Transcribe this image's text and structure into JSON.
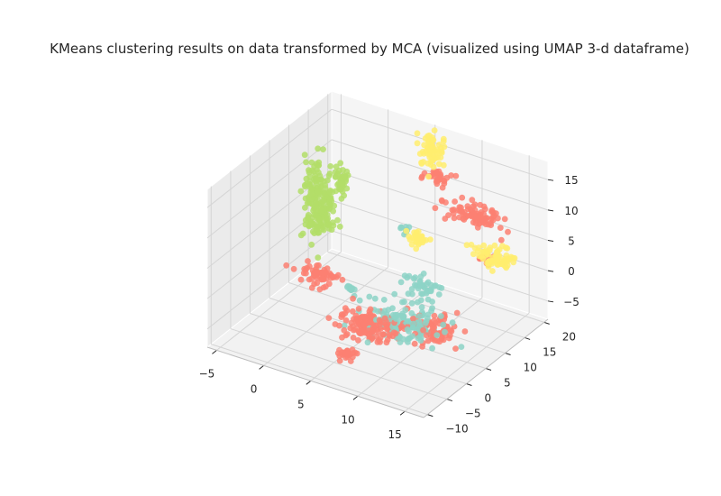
{
  "chart_data": {
    "type": "scatter",
    "projection": "3d",
    "title": "KMeans clustering results on data transformed by MCA (visualized using UMAP 3-d dataframe)",
    "xlabel": "",
    "ylabel": "",
    "zlabel": "",
    "grid": true,
    "legend": "none",
    "xlim": [
      -6,
      17
    ],
    "ylim": [
      -11,
      21
    ],
    "zlim": [
      -8,
      18
    ],
    "x_ticks": [
      "−5",
      "0",
      "5",
      "10",
      "15"
    ],
    "y_ticks": [
      "−10",
      "−5",
      "0",
      "5",
      "10",
      "15",
      "20"
    ],
    "z_ticks": [
      "−5",
      "0",
      "5",
      "10",
      "15"
    ],
    "x_tick_values": [
      -5,
      0,
      5,
      10,
      15
    ],
    "y_tick_values": [
      -10,
      -5,
      0,
      5,
      10,
      15,
      20
    ],
    "z_tick_values": [
      -5,
      0,
      5,
      10,
      15
    ],
    "series": [
      {
        "color": "#b3de69",
        "clusters": [
          {
            "x": -4.5,
            "y": 13,
            "z": 5,
            "sx": 0.5,
            "sy": 1.0,
            "sz": 3.5,
            "n": 130
          },
          {
            "x": -3.2,
            "y": 13,
            "z": 4,
            "sx": 0.4,
            "sy": 0.8,
            "sz": 2.5,
            "n": 70
          },
          {
            "x": -2.5,
            "y": 15,
            "z": 8,
            "sx": 0.3,
            "sy": 0.5,
            "sz": 1.2,
            "n": 40
          }
        ]
      },
      {
        "color": "#8dd3c7",
        "clusters": [
          {
            "x": 8.5,
            "y": 4,
            "z": -4,
            "sx": 2.0,
            "sy": 1.5,
            "sz": 1.2,
            "n": 120
          },
          {
            "x": 8,
            "y": 10,
            "z": -2,
            "sx": 1.0,
            "sy": 1.0,
            "sz": 1.0,
            "n": 45
          },
          {
            "x": 1,
            "y": 9,
            "z": -5,
            "sx": 0.4,
            "sy": 0.4,
            "sz": 0.4,
            "n": 10
          },
          {
            "x": 3.5,
            "y": 17,
            "z": 2,
            "sx": 0.4,
            "sy": 0.4,
            "sz": 0.4,
            "n": 10
          }
        ]
      },
      {
        "color": "#fb8072",
        "clusters": [
          {
            "x": 6,
            "y": 2,
            "z": -5,
            "sx": 1.5,
            "sy": 1.5,
            "sz": 1.0,
            "n": 150
          },
          {
            "x": 11,
            "y": 6,
            "z": -5,
            "sx": 1.0,
            "sy": 1.5,
            "sz": 1.0,
            "n": 80
          },
          {
            "x": 6.5,
            "y": -5,
            "z": -6,
            "sx": 0.5,
            "sy": 0.5,
            "sz": 0.4,
            "n": 25
          },
          {
            "x": -0.5,
            "y": 5,
            "z": -1.5,
            "sx": 1.0,
            "sy": 0.8,
            "sz": 0.6,
            "n": 60
          },
          {
            "x": 10,
            "y": 18.5,
            "z": 7,
            "sx": 1.5,
            "sy": 1.0,
            "sz": 0.6,
            "n": 90
          },
          {
            "x": 6,
            "y": 20,
            "z": 10,
            "sx": 0.7,
            "sy": 0.5,
            "sz": 0.5,
            "n": 30
          },
          {
            "x": 12,
            "y": 17,
            "z": 1,
            "sx": 0.4,
            "sy": 0.4,
            "sz": 0.4,
            "n": 12
          }
        ]
      },
      {
        "color": "#ffed6f",
        "clusters": [
          {
            "x": 5,
            "y": 20,
            "z": 14,
            "sx": 0.5,
            "sy": 0.7,
            "sz": 1.8,
            "n": 60
          },
          {
            "x": 13.5,
            "y": 16,
            "z": 3,
            "sx": 1.0,
            "sy": 0.8,
            "sz": 0.8,
            "n": 70
          },
          {
            "x": 6,
            "y": 14,
            "z": 3,
            "sx": 0.5,
            "sy": 0.5,
            "sz": 0.5,
            "n": 35
          }
        ]
      }
    ]
  }
}
